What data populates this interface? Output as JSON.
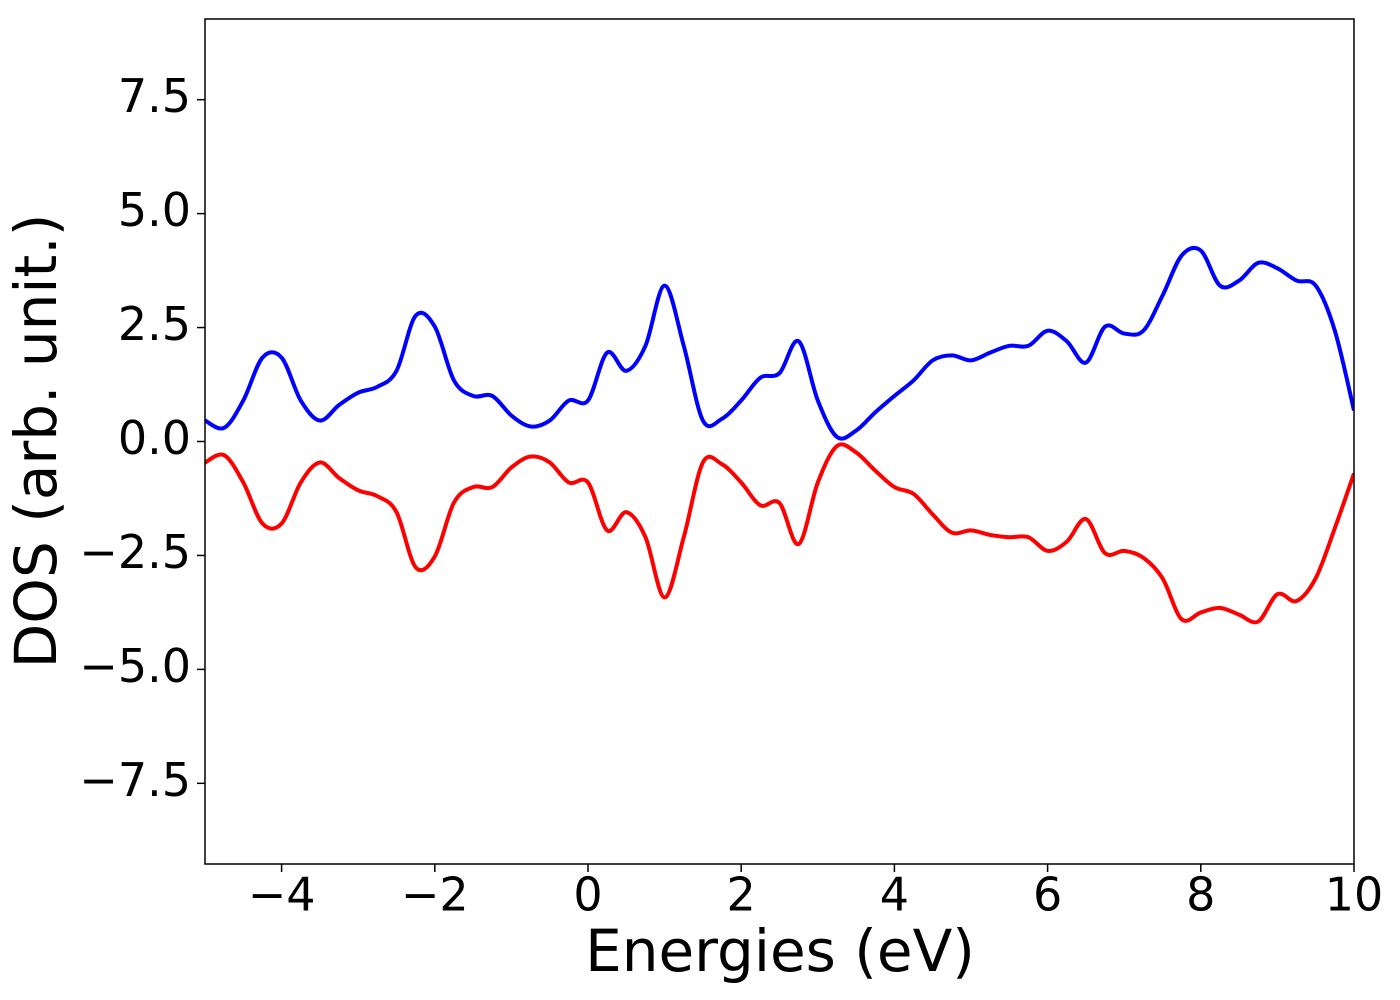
{
  "chart_data": {
    "type": "line",
    "x_label": "Energies (eV)",
    "y_label": "DOS (arb. unit.)",
    "x": [
      -5,
      -4.75,
      -4.5,
      -4.25,
      -4,
      -3.75,
      -3.5,
      -3.25,
      -3,
      -2.75,
      -2.5,
      -2.25,
      -2,
      -1.75,
      -1.5,
      -1.25,
      -1,
      -0.75,
      -0.5,
      -0.25,
      0,
      0.25,
      0.5,
      0.75,
      1,
      1.25,
      1.5,
      1.75,
      2,
      2.25,
      2.5,
      2.75,
      3,
      3.25,
      3.5,
      3.75,
      4,
      4.25,
      4.5,
      4.75,
      5,
      5.25,
      5.5,
      5.75,
      6,
      6.25,
      6.5,
      6.75,
      7,
      7.25,
      7.5,
      7.75,
      8,
      8.25,
      8.5,
      8.75,
      9,
      9.25,
      9.5,
      9.75,
      10
    ],
    "series": [
      {
        "color": "#0000ff",
        "values": [
          0.46,
          0.3,
          0.9,
          1.84,
          1.84,
          0.9,
          0.46,
          0.8,
          1.07,
          1.2,
          1.55,
          2.76,
          2.52,
          1.34,
          1.0,
          1.0,
          0.57,
          0.33,
          0.46,
          0.9,
          0.9,
          1.95,
          1.55,
          2.1,
          3.42,
          2.1,
          0.46,
          0.5,
          0.9,
          1.4,
          1.5,
          2.2,
          0.9,
          0.1,
          0.24,
          0.64,
          1.0,
          1.34,
          1.78,
          1.89,
          1.78,
          1.95,
          2.1,
          2.1,
          2.43,
          2.2,
          1.73,
          2.52,
          2.37,
          2.43,
          3.2,
          4.08,
          4.19,
          3.42,
          3.53,
          3.92,
          3.8,
          3.53,
          3.42,
          2.43,
          0.68
        ]
      },
      {
        "color": "#ff0000",
        "values": [
          -0.46,
          -0.3,
          -0.9,
          -1.8,
          -1.8,
          -0.9,
          -0.46,
          -0.8,
          -1.07,
          -1.2,
          -1.55,
          -2.76,
          -2.52,
          -1.34,
          -1.0,
          -1.0,
          -0.57,
          -0.33,
          -0.46,
          -0.9,
          -0.9,
          -1.95,
          -1.55,
          -2.1,
          -3.42,
          -2.1,
          -0.46,
          -0.5,
          -0.9,
          -1.4,
          -1.35,
          -2.25,
          -0.9,
          -0.1,
          -0.24,
          -0.64,
          -1.0,
          -1.15,
          -1.6,
          -2.0,
          -1.95,
          -2.05,
          -2.1,
          -2.1,
          -2.4,
          -2.2,
          -1.7,
          -2.45,
          -2.4,
          -2.55,
          -3.0,
          -3.9,
          -3.75,
          -3.65,
          -3.8,
          -3.95,
          -3.35,
          -3.5,
          -3.0,
          -1.9,
          -0.7
        ]
      }
    ],
    "xlim": [
      -5,
      10
    ],
    "xticks": [
      {
        "value": -4,
        "label": "−4"
      },
      {
        "value": -2,
        "label": "−2"
      },
      0,
      2,
      4,
      6,
      8,
      10
    ],
    "ylim": [
      -9.27,
      9.27
    ],
    "yticks": [
      {
        "value": -7.5,
        "label": "−7.5"
      },
      {
        "value": -5,
        "label": "−5.0"
      },
      {
        "value": -2.5,
        "label": "−2.5"
      },
      {
        "value": 0,
        "label": "0.0"
      },
      2.5,
      {
        "value": 5,
        "label": "5.0"
      },
      7.5
    ],
    "grid": false
  }
}
